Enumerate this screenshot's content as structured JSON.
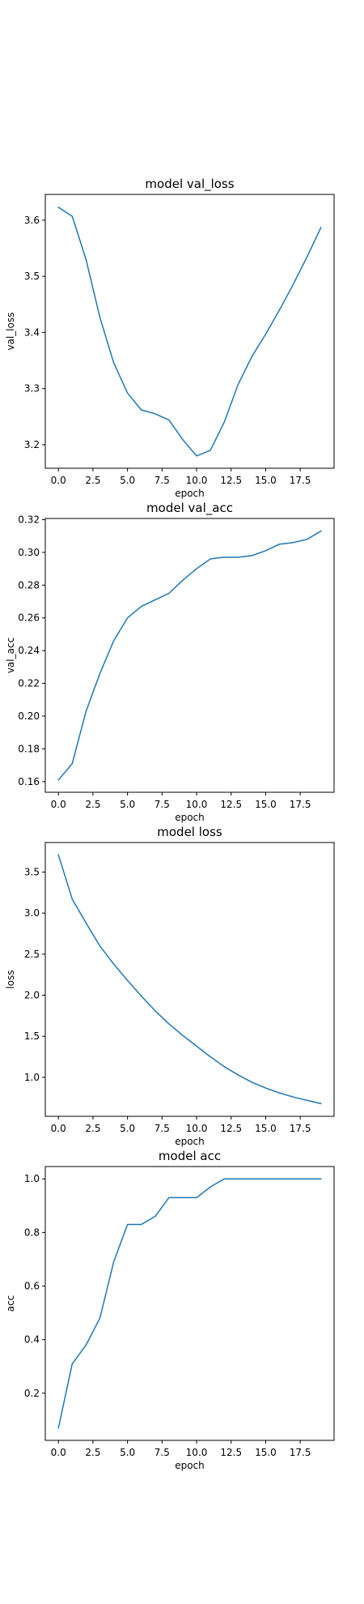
{
  "line_color": "#1f77b4",
  "chart_data": [
    {
      "type": "line",
      "title": "model val_loss",
      "xlabel": "epoch",
      "ylabel": "val_loss",
      "xlim": [
        -0.95,
        19.95
      ],
      "ylim": [
        3.158,
        3.646
      ],
      "x": [
        0,
        1,
        2,
        3,
        4,
        5,
        6,
        7,
        8,
        9,
        10,
        11,
        12,
        13,
        14,
        15,
        16,
        17,
        18,
        19
      ],
      "y": [
        3.623,
        3.607,
        3.53,
        3.427,
        3.346,
        3.292,
        3.262,
        3.255,
        3.244,
        3.209,
        3.18,
        3.19,
        3.24,
        3.307,
        3.357,
        3.397,
        3.44,
        3.486,
        3.535,
        3.587
      ],
      "xticks": [
        0,
        2.5,
        5,
        7.5,
        10,
        12.5,
        15,
        17.5
      ],
      "xtick_labels": [
        "0.0",
        "2.5",
        "5.0",
        "7.5",
        "10.0",
        "12.5",
        "15.0",
        "17.5"
      ],
      "yticks": [
        3.2,
        3.3,
        3.4,
        3.5,
        3.6
      ],
      "ytick_labels": [
        "3.2",
        "3.3",
        "3.4",
        "3.5",
        "3.6"
      ]
    },
    {
      "type": "line",
      "title": "model val_acc",
      "xlabel": "epoch",
      "ylabel": "val_acc",
      "xlim": [
        -0.95,
        19.95
      ],
      "ylim": [
        0.1535,
        0.3207
      ],
      "x": [
        0,
        1,
        2,
        3,
        4,
        5,
        6,
        7,
        8,
        9,
        10,
        11,
        12,
        13,
        14,
        15,
        16,
        17,
        18,
        19
      ],
      "y": [
        0.161,
        0.171,
        0.203,
        0.226,
        0.246,
        0.26,
        0.267,
        0.271,
        0.275,
        0.283,
        0.29,
        0.296,
        0.297,
        0.297,
        0.298,
        0.301,
        0.305,
        0.306,
        0.308,
        0.313
      ],
      "xticks": [
        0,
        2.5,
        5,
        7.5,
        10,
        12.5,
        15,
        17.5
      ],
      "xtick_labels": [
        "0.0",
        "2.5",
        "5.0",
        "7.5",
        "10.0",
        "12.5",
        "15.0",
        "17.5"
      ],
      "yticks": [
        0.16,
        0.18,
        0.2,
        0.22,
        0.24,
        0.26,
        0.28,
        0.3,
        0.32
      ],
      "ytick_labels": [
        "0.16",
        "0.18",
        "0.20",
        "0.22",
        "0.24",
        "0.26",
        "0.28",
        "0.30",
        "0.32"
      ]
    },
    {
      "type": "line",
      "title": "model loss",
      "xlabel": "epoch",
      "ylabel": "loss",
      "xlim": [
        -0.95,
        19.95
      ],
      "ylim": [
        0.525,
        3.86
      ],
      "x": [
        0,
        1,
        2,
        3,
        4,
        5,
        6,
        7,
        8,
        9,
        10,
        11,
        12,
        13,
        14,
        15,
        16,
        17,
        18,
        19
      ],
      "y": [
        3.71,
        3.17,
        2.88,
        2.6,
        2.38,
        2.18,
        1.99,
        1.81,
        1.65,
        1.51,
        1.38,
        1.25,
        1.13,
        1.03,
        0.94,
        0.87,
        0.81,
        0.76,
        0.72,
        0.68
      ],
      "xticks": [
        0,
        2.5,
        5,
        7.5,
        10,
        12.5,
        15,
        17.5
      ],
      "xtick_labels": [
        "0.0",
        "2.5",
        "5.0",
        "7.5",
        "10.0",
        "12.5",
        "15.0",
        "17.5"
      ],
      "yticks": [
        1.0,
        1.5,
        2.0,
        2.5,
        3.0,
        3.5
      ],
      "ytick_labels": [
        "1.0",
        "1.5",
        "2.0",
        "2.5",
        "3.0",
        "3.5"
      ]
    },
    {
      "type": "line",
      "title": "model acc",
      "xlabel": "epoch",
      "ylabel": "acc",
      "xlim": [
        -0.95,
        19.95
      ],
      "ylim": [
        0.024,
        1.046
      ],
      "x": [
        0,
        1,
        2,
        3,
        4,
        5,
        6,
        7,
        8,
        9,
        10,
        11,
        12,
        13,
        14,
        15,
        16,
        17,
        18,
        19
      ],
      "y": [
        0.07,
        0.31,
        0.38,
        0.48,
        0.69,
        0.83,
        0.83,
        0.86,
        0.93,
        0.93,
        0.93,
        0.97,
        1.0,
        1.0,
        1.0,
        1.0,
        1.0,
        1.0,
        1.0,
        1.0
      ],
      "xticks": [
        0,
        2.5,
        5,
        7.5,
        10,
        12.5,
        15,
        17.5
      ],
      "xtick_labels": [
        "0.0",
        "2.5",
        "5.0",
        "7.5",
        "10.0",
        "12.5",
        "15.0",
        "17.5"
      ],
      "yticks": [
        0.2,
        0.4,
        0.6,
        0.8,
        1.0
      ],
      "ytick_labels": [
        "0.2",
        "0.4",
        "0.6",
        "0.8",
        "1.0"
      ]
    }
  ]
}
